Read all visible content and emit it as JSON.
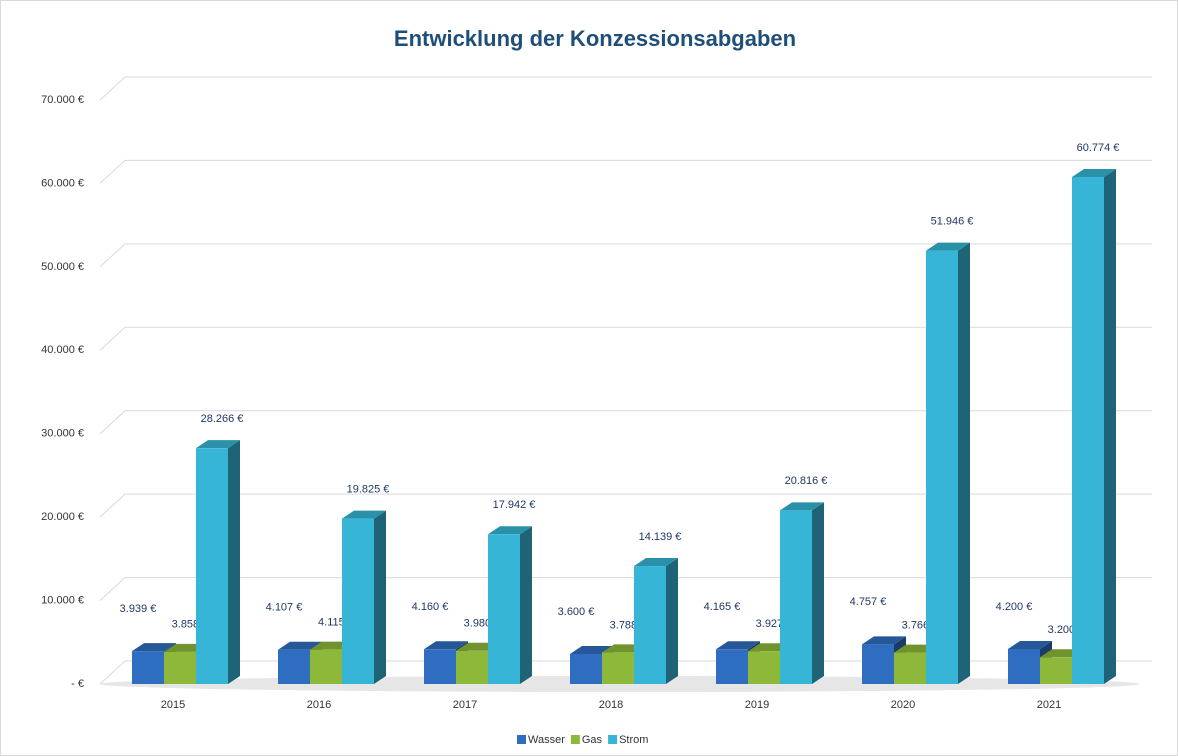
{
  "chart_data": {
    "type": "bar3d",
    "title": "Entwicklung der Konzessionsabgaben",
    "categories": [
      "2015",
      "2016",
      "2017",
      "2018",
      "2019",
      "2020",
      "2021"
    ],
    "series": [
      {
        "name": "Wasser",
        "color": "#2e6dbf",
        "values": [
          3939,
          4107,
          4160,
          3600,
          4165,
          4757,
          4200
        ],
        "value_labels": [
          "3.939 €",
          "4.107 €",
          "4.160 €",
          "3.600 €",
          "4.165 €",
          "4.757 €",
          "4.200 €"
        ]
      },
      {
        "name": "Gas",
        "color": "#8db83a",
        "values": [
          3858,
          4115,
          3980,
          3788,
          3927,
          3766,
          3200
        ],
        "value_labels": [
          "3.858 €",
          "4.115 €",
          "3.980 €",
          "3.788 €",
          "3.927 €",
          "3.766 €",
          "3.200 €"
        ]
      },
      {
        "name": "Strom",
        "color": "#36b5d6",
        "values": [
          28266,
          19825,
          17942,
          14139,
          20816,
          51946,
          60774
        ],
        "value_labels": [
          "28.266 €",
          "19.825 €",
          "17.942 €",
          "14.139 €",
          "20.816 €",
          "51.946 €",
          "60.774 €"
        ]
      }
    ],
    "ylim": [
      0,
      70000
    ],
    "yticks": [
      {
        "value": 0,
        "label": "-   €"
      },
      {
        "value": 10000,
        "label": "10.000 €"
      },
      {
        "value": 20000,
        "label": "20.000 €"
      },
      {
        "value": 30000,
        "label": "30.000 €"
      },
      {
        "value": 40000,
        "label": "40.000 €"
      },
      {
        "value": 50000,
        "label": "50.000 €"
      },
      {
        "value": 60000,
        "label": "60.000 €"
      },
      {
        "value": 70000,
        "label": "70.000 €"
      }
    ],
    "grid": true,
    "legend": "bottom"
  }
}
